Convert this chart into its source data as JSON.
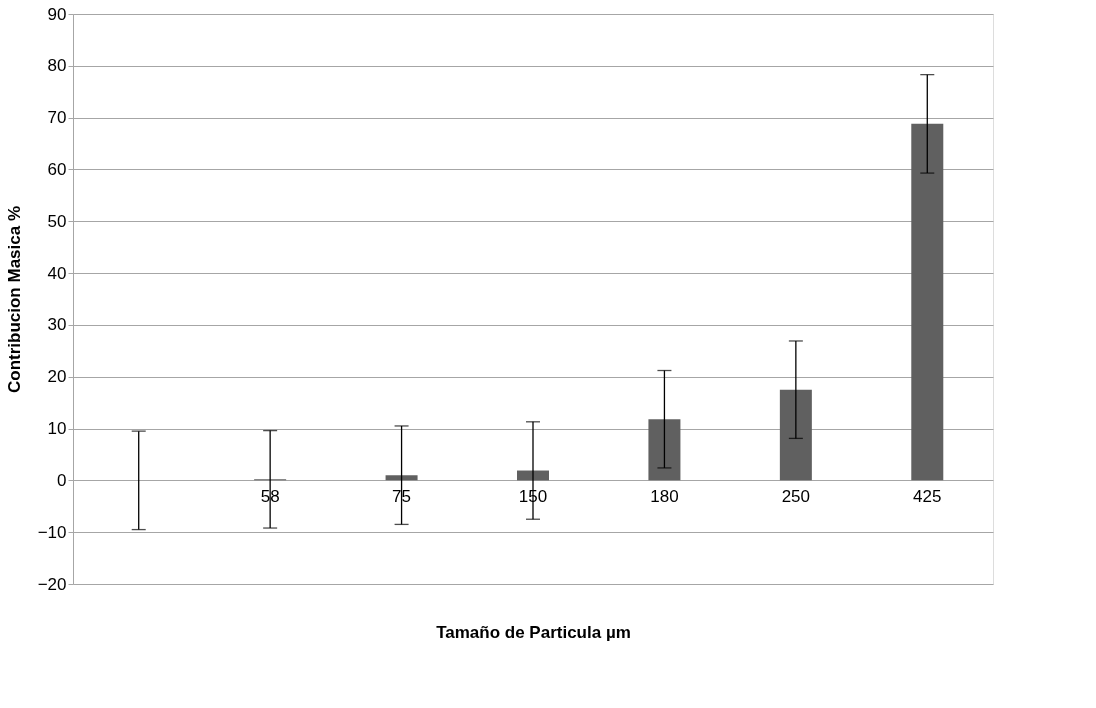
{
  "chart_data": {
    "type": "bar",
    "xlabel": "Tamaño de Particula µm",
    "ylabel": "Contribucion Masica %",
    "categories": [
      null,
      "58",
      "75",
      "150",
      "180",
      "250",
      "425"
    ],
    "values": [
      0,
      0.2,
      1.0,
      1.9,
      11.8,
      17.5,
      68.8
    ],
    "errors": [
      9.5,
      9.4,
      9.5,
      9.4,
      9.4,
      9.4,
      9.5
    ],
    "color": "#606060",
    "ylim": [
      -20,
      90
    ],
    "yticks": [
      -20,
      -10,
      0,
      10,
      20,
      30,
      40,
      50,
      60,
      70,
      80,
      90
    ],
    "grid": "y"
  }
}
